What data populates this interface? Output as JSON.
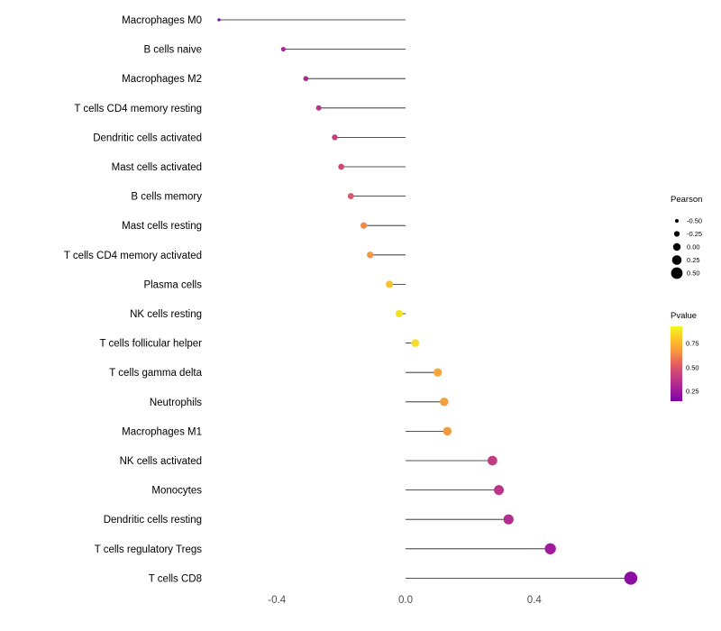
{
  "page": {
    "background": "#ffffff"
  },
  "chart_data": {
    "type": "lollipop",
    "orientation": "horizontal",
    "title": "",
    "xlabel": "",
    "ylabel": "",
    "grid": false,
    "xlim": [
      -0.62,
      0.82
    ],
    "x_ticks": [
      -0.4,
      0,
      0.4
    ],
    "x_tick_labels": [
      "-0.4",
      "0.0",
      "0.4"
    ],
    "categories": [
      "Macrophages M0",
      "B cells naive",
      "Macrophages M2",
      "T cells CD4 memory resting",
      "Dendritic cells activated",
      "Mast cells activated",
      "B cells memory",
      "Mast cells resting",
      "T cells CD4 memory activated",
      "Plasma cells",
      "NK cells resting",
      "T cells follicular helper",
      "T cells gamma delta",
      "Neutrophils",
      "Macrophages M1",
      "NK cells activated",
      "Monocytes",
      "Dendritic cells resting",
      "T cells regulatory  Tregs",
      "T cells CD8"
    ],
    "series": [
      {
        "name": "Pearson",
        "values": [
          -0.58,
          -0.38,
          -0.31,
          -0.27,
          -0.22,
          -0.2,
          -0.17,
          -0.13,
          -0.11,
          -0.05,
          -0.02,
          0.03,
          0.1,
          0.12,
          0.13,
          0.27,
          0.29,
          0.32,
          0.45,
          0.7
        ]
      }
    ],
    "point_colors": [
      "#7E03A8",
      "#A62098",
      "#B02991",
      "#BB3488",
      "#C6417D",
      "#CB4A79",
      "#D45C6E",
      "#EE8B4B",
      "#F19946",
      "#F7C02F",
      "#F3E423",
      "#F6DC26",
      "#F3A83A",
      "#F1A03E",
      "#EF9A43",
      "#C23E82",
      "#BB3488",
      "#B42C8E",
      "#A01B9B",
      "#8E0CA4"
    ],
    "stem_color": "#1a1a1a",
    "legends": {
      "size": {
        "title": "Pearson",
        "labels": [
          "-0.50",
          "-0.25",
          "0.00",
          "0.25",
          "0.50"
        ],
        "values": [
          -0.5,
          -0.25,
          0,
          0.25,
          0.5
        ],
        "dot_color": "#000000"
      },
      "color": {
        "title": "Pvalue",
        "tick_labels": [
          "0.75",
          "0.50",
          "0.25"
        ],
        "gradient_top_to_bottom": [
          "#F0F921",
          "#FDC427",
          "#F9973F",
          "#E4605E",
          "#C43E7F",
          "#A62098",
          "#7B02A8"
        ]
      }
    }
  }
}
